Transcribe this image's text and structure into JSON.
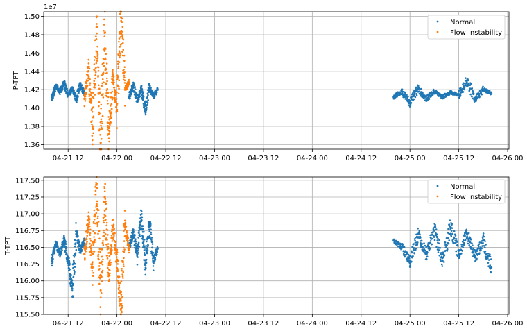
{
  "chart_data": [
    {
      "type": "scatter",
      "ylabel": "P-TPT",
      "offset_label": "1e7",
      "y_scale": 10000000,
      "ylim": [
        1.355,
        1.505
      ],
      "yticks": [
        1.36,
        1.38,
        1.4,
        1.42,
        1.44,
        1.46,
        1.48,
        1.5
      ],
      "ytick_labels": [
        "1.36",
        "1.38",
        "1.40",
        "1.42",
        "1.44",
        "1.46",
        "1.48",
        "1.50"
      ],
      "xlim": [
        "2021-04-21 06:00",
        "2021-04-26 00:20"
      ],
      "xticks": [
        "2021-04-21 12:00",
        "2021-04-22 00:00",
        "2021-04-22 12:00",
        "2021-04-23 00:00",
        "2021-04-23 12:00",
        "2021-04-24 00:00",
        "2021-04-24 12:00",
        "2021-04-25 00:00",
        "2021-04-25 12:00",
        "2021-04-26 00:00"
      ],
      "xtick_labels": [
        "04-21 12",
        "04-22 00",
        "04-22 12",
        "04-23 00",
        "04-23 12",
        "04-24 00",
        "04-24 12",
        "04-25 00",
        "04-25 12",
        "04-26 00"
      ],
      "grid": true,
      "legend_position": "top-right",
      "series": [
        {
          "name": "Normal",
          "color": "#1f77b4",
          "segments": [
            {
              "x": [
                "2021-04-21 08:00",
                "2021-04-21 09:00",
                "2021-04-21 10:00",
                "2021-04-21 11:00",
                "2021-04-21 12:00",
                "2021-04-21 13:00",
                "2021-04-21 14:00",
                "2021-04-21 15:00",
                "2021-04-21 16:00"
              ],
              "y": [
                1.411,
                1.424,
                1.418,
                1.427,
                1.414,
                1.421,
                1.41,
                1.425,
                1.416
              ]
            },
            {
              "x": [
                "2021-04-22 03:00",
                "2021-04-22 04:00",
                "2021-04-22 05:00",
                "2021-04-22 06:00",
                "2021-04-22 07:00",
                "2021-04-22 08:00",
                "2021-04-22 09:00",
                "2021-04-22 10:00"
              ],
              "y": [
                1.412,
                1.425,
                1.408,
                1.42,
                1.398,
                1.422,
                1.413,
                1.42
              ]
            },
            {
              "x": [
                "2021-04-24 20:00",
                "2021-04-24 22:00",
                "2021-04-25 00:00",
                "2021-04-25 02:00",
                "2021-04-25 04:00",
                "2021-04-25 06:00",
                "2021-04-25 08:00",
                "2021-04-25 10:00",
                "2021-04-25 12:00",
                "2021-04-25 14:00",
                "2021-04-25 16:00",
                "2021-04-25 18:00",
                "2021-04-25 20:00"
              ],
              "y": [
                1.412,
                1.418,
                1.406,
                1.421,
                1.41,
                1.418,
                1.412,
                1.417,
                1.414,
                1.43,
                1.41,
                1.42,
                1.416
              ]
            }
          ]
        },
        {
          "name": "Flow Instability",
          "color": "#ff7f0e",
          "segments": [
            {
              "x": [
                "2021-04-21 16:00",
                "2021-04-21 17:00",
                "2021-04-21 18:00",
                "2021-04-21 19:00",
                "2021-04-21 20:00",
                "2021-04-21 21:00",
                "2021-04-21 22:00",
                "2021-04-21 23:00",
                "2021-04-22 00:00",
                "2021-04-22 01:00",
                "2021-04-22 02:00",
                "2021-04-22 03:00"
              ],
              "y": [
                1.41,
                1.44,
                1.38,
                1.488,
                1.362,
                1.482,
                1.372,
                1.431,
                1.398,
                1.499,
                1.42,
                1.428
              ]
            }
          ]
        }
      ]
    },
    {
      "type": "scatter",
      "ylabel": "T-TPT",
      "ylim": [
        115.5,
        117.55
      ],
      "yticks": [
        115.5,
        115.75,
        116.0,
        116.25,
        116.5,
        116.75,
        117.0,
        117.25,
        117.5
      ],
      "ytick_labels": [
        "115.50",
        "115.75",
        "116.00",
        "116.25",
        "116.50",
        "116.75",
        "117.00",
        "117.25",
        "117.50"
      ],
      "xlim": [
        "2021-04-21 06:00",
        "2021-04-26 00:20"
      ],
      "xticks": [
        "2021-04-21 12:00",
        "2021-04-22 00:00",
        "2021-04-22 12:00",
        "2021-04-23 00:00",
        "2021-04-23 12:00",
        "2021-04-24 00:00",
        "2021-04-24 12:00",
        "2021-04-25 00:00",
        "2021-04-25 12:00",
        "2021-04-26 00:00"
      ],
      "xtick_labels": [
        "04-21 12",
        "04-22 00",
        "04-22 12",
        "04-23 00",
        "04-23 12",
        "04-24 00",
        "04-24 12",
        "04-25 00",
        "04-25 12",
        "04-26 00"
      ],
      "grid": true,
      "legend_position": "top-right",
      "series": [
        {
          "name": "Normal",
          "color": "#1f77b4",
          "segments": [
            {
              "x": [
                "2021-04-21 08:00",
                "2021-04-21 09:00",
                "2021-04-21 10:00",
                "2021-04-21 11:00",
                "2021-04-21 12:00",
                "2021-04-21 13:00",
                "2021-04-21 14:00",
                "2021-04-21 15:00",
                "2021-04-21 16:00"
              ],
              "y": [
                116.3,
                116.55,
                116.4,
                116.6,
                116.3,
                115.88,
                116.7,
                116.45,
                116.6
              ]
            },
            {
              "x": [
                "2021-04-22 03:00",
                "2021-04-22 04:00",
                "2021-04-22 05:00",
                "2021-04-22 06:00",
                "2021-04-22 07:00",
                "2021-04-22 08:00",
                "2021-04-22 09:00",
                "2021-04-22 10:00"
              ],
              "y": [
                116.5,
                116.72,
                116.4,
                116.95,
                116.26,
                116.85,
                116.3,
                116.48
              ]
            },
            {
              "x": [
                "2021-04-24 20:00",
                "2021-04-24 22:00",
                "2021-04-25 00:00",
                "2021-04-25 02:00",
                "2021-04-25 04:00",
                "2021-04-25 06:00",
                "2021-04-25 08:00",
                "2021-04-25 10:00",
                "2021-04-25 12:00",
                "2021-04-25 14:00",
                "2021-04-25 16:00",
                "2021-04-25 18:00",
                "2021-04-25 20:00"
              ],
              "y": [
                116.6,
                116.5,
                116.3,
                116.7,
                116.4,
                116.75,
                116.3,
                116.8,
                116.4,
                116.7,
                116.35,
                116.6,
                116.2
              ]
            }
          ]
        },
        {
          "name": "Flow Instability",
          "color": "#ff7f0e",
          "segments": [
            {
              "x": [
                "2021-04-21 16:00",
                "2021-04-21 17:00",
                "2021-04-21 18:00",
                "2021-04-21 19:00",
                "2021-04-21 20:00",
                "2021-04-21 21:00",
                "2021-04-21 22:00",
                "2021-04-21 23:00",
                "2021-04-22 00:00",
                "2021-04-22 01:00",
                "2021-04-22 02:00",
                "2021-04-22 03:00"
              ],
              "y": [
                116.4,
                116.9,
                116.2,
                117.45,
                115.85,
                117.25,
                116.1,
                116.8,
                116.3,
                115.58,
                116.8,
                116.5
              ]
            }
          ]
        }
      ]
    }
  ]
}
